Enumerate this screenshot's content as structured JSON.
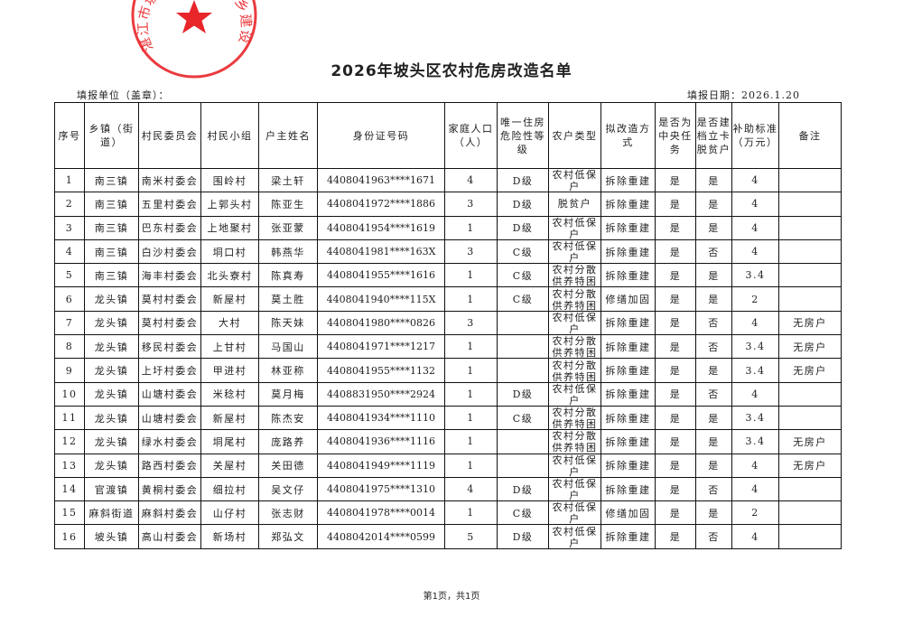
{
  "title": "2026年坡头区农村危房改造名单",
  "fill_unit": "填报单位（盖章）：",
  "fill_date": "填报日期：2026.1.20",
  "stamp": {
    "text": "湛江市坡头区住房和城乡建设局",
    "color": "#e8262a"
  },
  "headers": [
    "序号",
    "乡镇（街道）",
    "村民委员会",
    "村民小组",
    "户主姓名",
    "身份证号码",
    "家庭人口（人）",
    "唯一住房危险性等级",
    "农户类型",
    "拟改造方式",
    "是否为中央任务",
    "是否建档立卡脱贫户",
    "补助标准（万元）",
    "备注"
  ],
  "rows": [
    [
      "1",
      "南三镇",
      "南米村委会",
      "围岭村",
      "梁土轩",
      "4408041963****1671",
      "4",
      "D级",
      "农村低保户",
      "拆除重建",
      "是",
      "是",
      "4",
      ""
    ],
    [
      "2",
      "南三镇",
      "五里村委会",
      "上郭头村",
      "陈亚生",
      "4408041972****1886",
      "3",
      "D级",
      "脱贫户",
      "拆除重建",
      "是",
      "是",
      "4",
      ""
    ],
    [
      "3",
      "南三镇",
      "巴东村委会",
      "上地聚村",
      "张亚蒙",
      "4408041954****1619",
      "1",
      "D级",
      "农村低保户",
      "拆除重建",
      "是",
      "是",
      "4",
      ""
    ],
    [
      "4",
      "南三镇",
      "白沙村委会",
      "垌口村",
      "韩燕华",
      "4408041981****163X",
      "3",
      "C级",
      "农村低保户",
      "拆除重建",
      "是",
      "否",
      "4",
      ""
    ],
    [
      "5",
      "南三镇",
      "海丰村委会",
      "北头寮村",
      "陈真寿",
      "4408041955****1616",
      "1",
      "C级",
      "农村分散供养特困",
      "拆除重建",
      "是",
      "是",
      "3.4",
      ""
    ],
    [
      "6",
      "龙头镇",
      "莫村村委会",
      "新屋村",
      "莫土胜",
      "4408041940****115X",
      "1",
      "C级",
      "农村分散供养特困",
      "修缮加固",
      "是",
      "是",
      "2",
      ""
    ],
    [
      "7",
      "龙头镇",
      "莫村村委会",
      "大村",
      "陈天妹",
      "4408041980****0826",
      "3",
      "",
      "农村低保户",
      "拆除重建",
      "是",
      "否",
      "4",
      "无房户"
    ],
    [
      "8",
      "龙头镇",
      "移民村委会",
      "上甘村",
      "马国山",
      "4408041971****1217",
      "1",
      "",
      "农村分散供养特困",
      "拆除重建",
      "是",
      "否",
      "3.4",
      "无房户"
    ],
    [
      "9",
      "龙头镇",
      "上圩村委会",
      "甲进村",
      "林亚称",
      "4408041955****1132",
      "1",
      "",
      "农村分散供养特困",
      "拆除重建",
      "是",
      "是",
      "3.4",
      "无房户"
    ],
    [
      "10",
      "龙头镇",
      "山塘村委会",
      "米稔村",
      "莫月梅",
      "4408831950****2924",
      "1",
      "D级",
      "农村低保户",
      "拆除重建",
      "是",
      "否",
      "4",
      ""
    ],
    [
      "11",
      "龙头镇",
      "山塘村委会",
      "新屋村",
      "陈杰安",
      "4408041934****1110",
      "1",
      "C级",
      "农村分散供养特困",
      "拆除重建",
      "是",
      "是",
      "3.4",
      ""
    ],
    [
      "12",
      "龙头镇",
      "绿水村委会",
      "垌尾村",
      "庞路养",
      "4408041936****1116",
      "1",
      "",
      "农村分散供养特困",
      "拆除重建",
      "是",
      "是",
      "3.4",
      "无房户"
    ],
    [
      "13",
      "龙头镇",
      "路西村委会",
      "关屋村",
      "关田德",
      "4408041949****1119",
      "1",
      "",
      "农村低保户",
      "拆除重建",
      "是",
      "是",
      "4",
      "无房户"
    ],
    [
      "14",
      "官渡镇",
      "黄桐村委会",
      "细拉村",
      "吴文仔",
      "4408041975****1310",
      "4",
      "D级",
      "农村低保户",
      "拆除重建",
      "是",
      "否",
      "4",
      ""
    ],
    [
      "15",
      "麻斜街道",
      "麻斜村委会",
      "山仔村",
      "张志财",
      "4408041978****0014",
      "1",
      "C级",
      "农村低保户",
      "修缮加固",
      "是",
      "是",
      "2",
      ""
    ],
    [
      "16",
      "坡头镇",
      "高山村委会",
      "新场村",
      "郑弘文",
      "4408042014****0599",
      "5",
      "D级",
      "农村低保户",
      "拆除重建",
      "是",
      "否",
      "4",
      ""
    ]
  ],
  "footer": "第1页，共1页"
}
